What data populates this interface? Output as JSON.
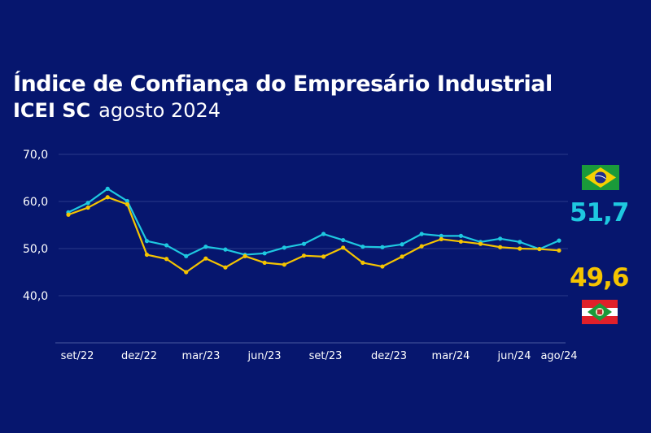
{
  "header": {
    "title": "Índice de Confiança do Empresário Industrial",
    "subtitle_bold": "ICEI SC",
    "subtitle_period": "agosto 2024"
  },
  "legend": {
    "brasil_value": "51,7",
    "sc_value": "49,6",
    "brasil_icon": "brazil-flag-icon",
    "sc_icon": "santa-catarina-flag-icon"
  },
  "colors": {
    "background": "#06166e",
    "brasil": "#1ec8e0",
    "sc": "#f5c400",
    "grid": "#2a3a8a"
  },
  "chart_data": {
    "type": "line",
    "ylim": [
      30,
      70
    ],
    "y_ticks": [
      "70,0",
      "60,0",
      "50,0",
      "40,0"
    ],
    "y_tick_values": [
      70,
      60,
      50,
      40
    ],
    "x_tick_labels": [
      "set/22",
      "dez/22",
      "mar/23",
      "jun/23",
      "set/23",
      "dez/23",
      "mar/24",
      "jun/24",
      "ago/24"
    ],
    "grid": true,
    "series": [
      {
        "key": "brasil",
        "color": "#1ec8e0",
        "values": [
          57.7,
          59.7,
          62.7,
          60.1,
          51.6,
          50.7,
          48.4,
          50.4,
          49.8,
          48.7,
          49.0,
          50.2,
          51.0,
          53.1,
          51.8,
          50.4,
          50.3,
          50.9,
          53.1,
          52.7,
          52.7,
          51.4,
          52.1,
          51.4,
          49.9,
          51.7
        ]
      },
      {
        "key": "sc",
        "color": "#f5c400",
        "values": [
          57.2,
          58.7,
          60.9,
          59.4,
          48.7,
          47.8,
          45.0,
          47.9,
          46.0,
          48.4,
          47.0,
          46.6,
          48.5,
          48.3,
          50.2,
          47.0,
          46.2,
          48.3,
          50.5,
          52.0,
          51.5,
          51.0,
          50.3,
          50.0,
          49.9,
          49.6
        ]
      }
    ]
  }
}
